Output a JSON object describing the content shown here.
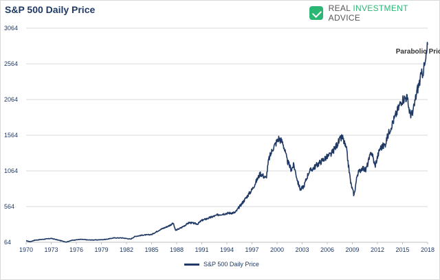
{
  "chart_data": {
    "type": "line",
    "title": "S&P 500 Daily Price",
    "xlabel": "",
    "ylabel": "",
    "ylim": [
      64,
      3064
    ],
    "xlim": [
      1970,
      2018
    ],
    "y_ticks": [
      "3064",
      "2564",
      "2064",
      "1564",
      "1064",
      "564",
      "64"
    ],
    "y_tick_values": [
      3064,
      2564,
      2064,
      1564,
      1064,
      564,
      64
    ],
    "x_ticks": [
      "1970",
      "1973",
      "1976",
      "1979",
      "1982",
      "1985",
      "1988",
      "1991",
      "1994",
      "1997",
      "2000",
      "2003",
      "2006",
      "2009",
      "2012",
      "2015",
      "2018"
    ],
    "x_tick_values": [
      1970,
      1973,
      1976,
      1979,
      1982,
      1985,
      1988,
      1991,
      1994,
      1997,
      2000,
      2003,
      2006,
      2009,
      2012,
      2015,
      2018
    ],
    "grid": "horizontal",
    "series": [
      {
        "name": "S&P 500 Daily Price",
        "color": "#1f3864",
        "points": [
          [
            1970.0,
            85
          ],
          [
            1970.5,
            72
          ],
          [
            1971.0,
            92
          ],
          [
            1972.0,
            105
          ],
          [
            1973.0,
            118
          ],
          [
            1974.0,
            90
          ],
          [
            1974.8,
            67
          ],
          [
            1975.5,
            92
          ],
          [
            1976.5,
            105
          ],
          [
            1977.5,
            96
          ],
          [
            1978.5,
            97
          ],
          [
            1979.5,
            104
          ],
          [
            1980.5,
            125
          ],
          [
            1981.5,
            125
          ],
          [
            1982.5,
            108
          ],
          [
            1983.0,
            145
          ],
          [
            1984.0,
            165
          ],
          [
            1985.0,
            172
          ],
          [
            1986.0,
            240
          ],
          [
            1987.0,
            290
          ],
          [
            1987.6,
            330
          ],
          [
            1987.85,
            230
          ],
          [
            1988.5,
            265
          ],
          [
            1989.5,
            340
          ],
          [
            1990.5,
            320
          ],
          [
            1991.0,
            370
          ],
          [
            1992.0,
            410
          ],
          [
            1993.0,
            450
          ],
          [
            1994.0,
            470
          ],
          [
            1995.0,
            480
          ],
          [
            1996.0,
            640
          ],
          [
            1997.0,
            800
          ],
          [
            1998.0,
            1030
          ],
          [
            1998.7,
            960
          ],
          [
            1999.0,
            1220
          ],
          [
            1999.5,
            1380
          ],
          [
            2000.2,
            1520
          ],
          [
            2000.7,
            1460
          ],
          [
            2001.2,
            1210
          ],
          [
            2001.7,
            1080
          ],
          [
            2002.0,
            1150
          ],
          [
            2002.5,
            900
          ],
          [
            2002.8,
            800
          ],
          [
            2003.2,
            850
          ],
          [
            2003.8,
            1050
          ],
          [
            2004.5,
            1120
          ],
          [
            2005.5,
            1220
          ],
          [
            2006.5,
            1300
          ],
          [
            2007.3,
            1460
          ],
          [
            2007.8,
            1540
          ],
          [
            2008.3,
            1360
          ],
          [
            2008.8,
            900
          ],
          [
            2009.2,
            720
          ],
          [
            2009.6,
            1020
          ],
          [
            2010.2,
            1110
          ],
          [
            2010.6,
            1070
          ],
          [
            2011.3,
            1340
          ],
          [
            2011.7,
            1130
          ],
          [
            2012.3,
            1380
          ],
          [
            2012.9,
            1430
          ],
          [
            2013.5,
            1650
          ],
          [
            2014.2,
            1850
          ],
          [
            2014.9,
            2060
          ],
          [
            2015.5,
            2100
          ],
          [
            2015.9,
            1870
          ],
          [
            2016.2,
            1850
          ],
          [
            2016.7,
            2170
          ],
          [
            2017.2,
            2380
          ],
          [
            2017.7,
            2550
          ],
          [
            2018.0,
            2830
          ]
        ]
      }
    ],
    "annotations": [
      {
        "text": "Parabolic Price Move",
        "x": 2014.2,
        "y": 2710
      }
    ],
    "legend": "bottom-center"
  },
  "logo": {
    "icon": "shield-check-icon",
    "word1": "REAL ",
    "word2": "INVESTMENT",
    "word3": " ADVICE"
  }
}
